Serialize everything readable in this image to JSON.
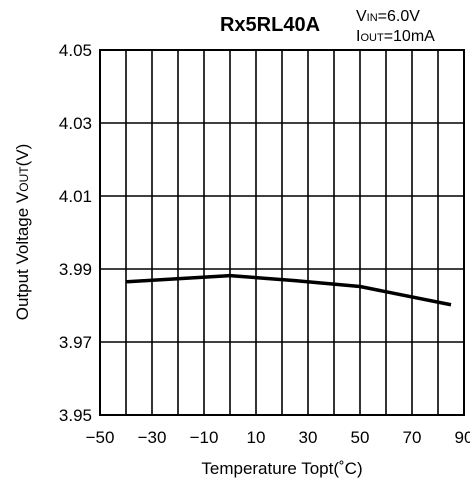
{
  "chart_data": {
    "type": "line",
    "title": "Rx5RL40A",
    "conditions": {
      "vin_main": "V",
      "vin_sub": "IN",
      "vin_val": "=6.0V",
      "iout_main": "I",
      "iout_sub": "OUT",
      "iout_val": "=10mA"
    },
    "xlabel": "Temperature Topt(˚C)",
    "ylabel": {
      "main": "Output Voltage V",
      "sub": "OUT",
      "unit": "(V)"
    },
    "xlim": [
      -50,
      90
    ],
    "ylim": [
      3.95,
      4.05
    ],
    "xticks": [
      -50,
      -30,
      -10,
      10,
      30,
      50,
      70,
      90
    ],
    "xtick_labels": [
      "−50",
      "−30",
      "−10",
      "10",
      "30",
      "50",
      "70",
      "90"
    ],
    "yticks": [
      3.95,
      3.97,
      3.99,
      4.01,
      4.03,
      4.05
    ],
    "ytick_labels": [
      "3.95",
      "3.97",
      "3.99",
      "4.01",
      "4.03",
      "4.05"
    ],
    "grid": true,
    "x_minor_step": 10,
    "series": [
      {
        "x": [
          -40,
          0,
          25,
          50,
          85
        ],
        "y": [
          3.9865,
          3.9882,
          3.9868,
          3.9852,
          3.9802
        ]
      }
    ]
  }
}
